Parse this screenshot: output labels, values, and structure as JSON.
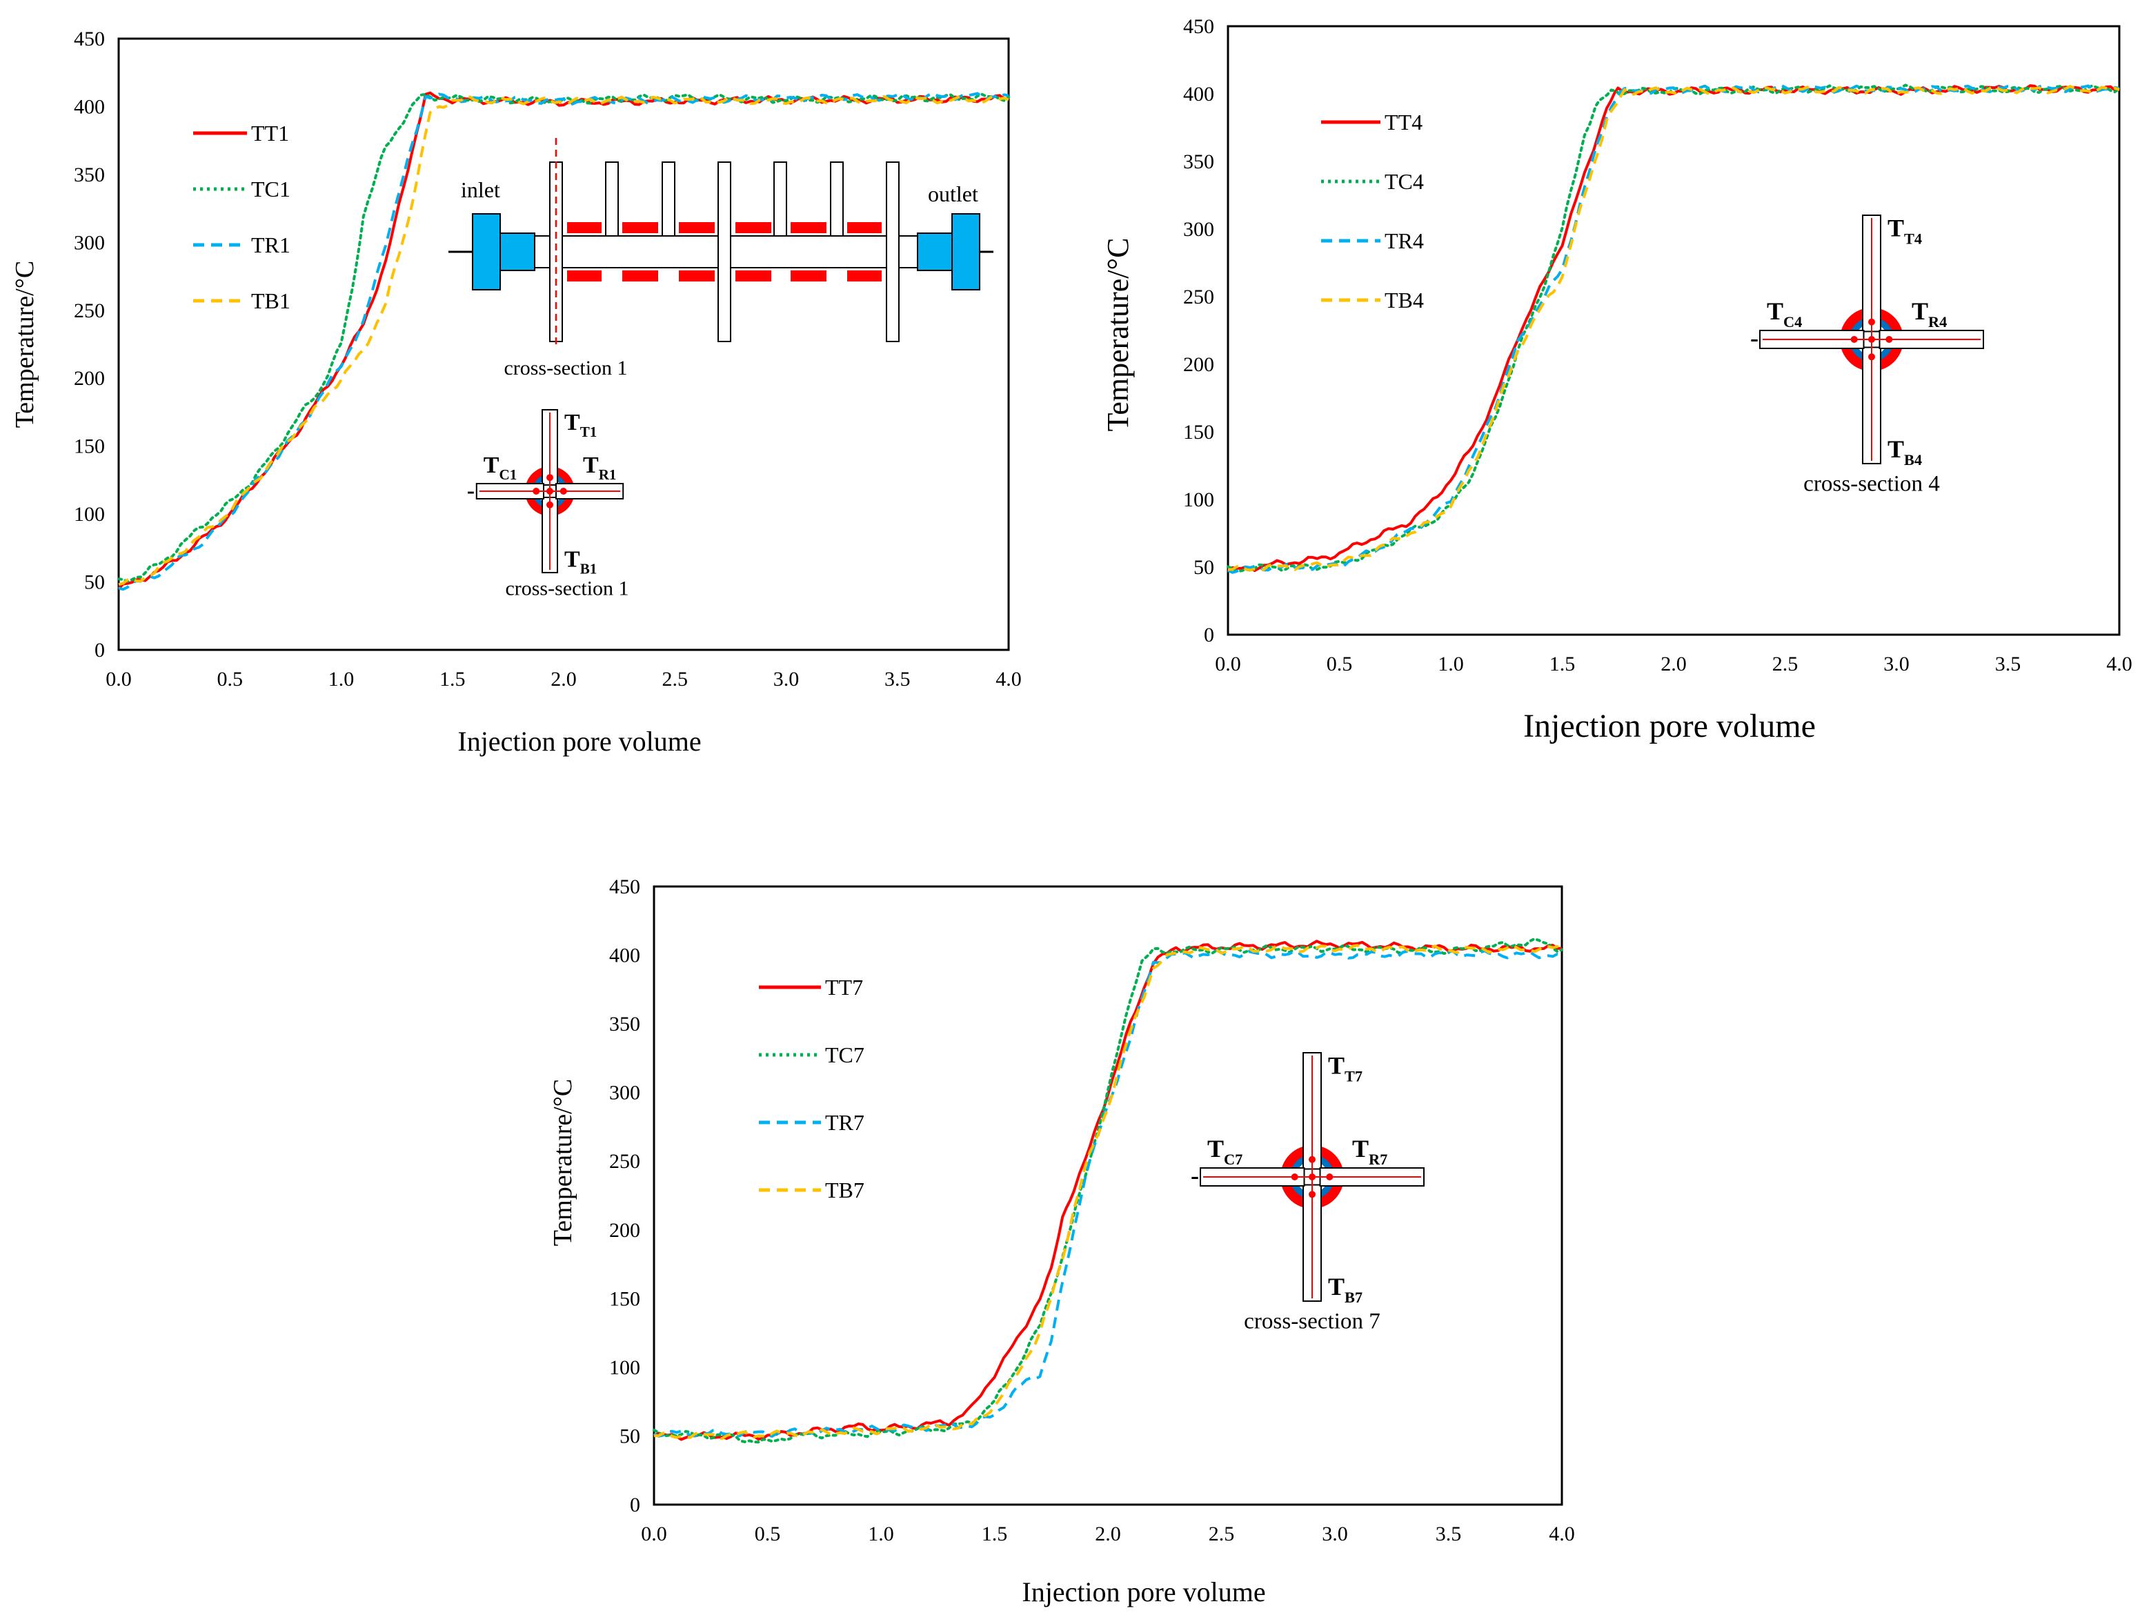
{
  "chart_data": [
    {
      "type": "line",
      "id": "cs1",
      "xlabel": "Injection pore volume",
      "ylabel": "Temperature/°C",
      "xlim": [
        0,
        4
      ],
      "ylim": [
        0,
        450
      ],
      "xticks": [
        "0.0",
        "0.5",
        "1.0",
        "1.5",
        "2.0",
        "2.5",
        "3.0",
        "3.5",
        "4.0"
      ],
      "yticks": [
        "0",
        "50",
        "100",
        "150",
        "200",
        "250",
        "300",
        "350",
        "400",
        "450"
      ],
      "legend_position": "top-left",
      "series": [
        {
          "name": "TT1",
          "color": "#ff0000",
          "dash": "solid",
          "x": [
            0,
            0.1,
            0.2,
            0.3,
            0.4,
            0.5,
            0.6,
            0.7,
            0.8,
            0.9,
            1.0,
            1.1,
            1.2,
            1.3,
            1.38,
            1.5,
            2.0,
            2.5,
            3.0,
            3.5,
            4.0
          ],
          "y": [
            45,
            52,
            60,
            72,
            85,
            100,
            120,
            140,
            160,
            185,
            210,
            240,
            285,
            355,
            408,
            405,
            403,
            404,
            405,
            405,
            406
          ]
        },
        {
          "name": "TC1",
          "color": "#00b050",
          "dash": "dotted",
          "x": [
            0,
            0.1,
            0.2,
            0.3,
            0.4,
            0.5,
            0.6,
            0.7,
            0.8,
            0.9,
            1.0,
            1.05,
            1.1,
            1.2,
            1.3,
            1.36,
            1.5,
            2.0,
            2.5,
            3.0,
            3.5,
            4.0
          ],
          "y": [
            50,
            55,
            65,
            80,
            95,
            108,
            125,
            145,
            170,
            190,
            225,
            265,
            320,
            370,
            395,
            408,
            406,
            404,
            407,
            405,
            406,
            407
          ]
        },
        {
          "name": "TR1",
          "color": "#00b0f0",
          "dash": "dashed",
          "x": [
            0,
            0.1,
            0.2,
            0.3,
            0.4,
            0.5,
            0.6,
            0.7,
            0.8,
            0.9,
            1.0,
            1.1,
            1.2,
            1.3,
            1.38,
            1.5,
            2.0,
            2.5,
            3.0,
            3.5,
            4.0
          ],
          "y": [
            46,
            50,
            58,
            70,
            82,
            100,
            120,
            140,
            160,
            185,
            210,
            240,
            300,
            360,
            408,
            406,
            404,
            405,
            406,
            407,
            408
          ]
        },
        {
          "name": "TB1",
          "color": "#ffc000",
          "dash": "dashed",
          "x": [
            0,
            0.1,
            0.2,
            0.3,
            0.4,
            0.5,
            0.6,
            0.7,
            0.8,
            0.9,
            1.0,
            1.1,
            1.2,
            1.3,
            1.4,
            1.5,
            2.0,
            2.5,
            3.0,
            3.5,
            4.0
          ],
          "y": [
            48,
            52,
            62,
            75,
            88,
            102,
            122,
            140,
            162,
            180,
            200,
            220,
            255,
            315,
            395,
            405,
            404,
            405,
            404,
            405,
            405
          ]
        }
      ],
      "inset": {
        "inlet": "inlet",
        "outlet": "outlet",
        "section_label": "cross-section 1",
        "top": "T",
        "top_sub": "T1",
        "left": "T",
        "left_sub": "C1",
        "right": "T",
        "right_sub": "R1",
        "bottom": "T",
        "bottom_sub": "B1",
        "minus": "-",
        "caption": "cross-section 1"
      }
    },
    {
      "type": "line",
      "id": "cs4",
      "xlabel": "Injection pore volume",
      "ylabel": "Temperature/°C",
      "xlim": [
        0,
        4
      ],
      "ylim": [
        0,
        450
      ],
      "xticks": [
        "0.0",
        "0.5",
        "1.0",
        "1.5",
        "2.0",
        "2.5",
        "3.0",
        "3.5",
        "4.0"
      ],
      "yticks": [
        "0",
        "50",
        "100",
        "150",
        "200",
        "250",
        "300",
        "350",
        "400",
        "450"
      ],
      "legend_position": "top-left",
      "series": [
        {
          "name": "TT4",
          "color": "#ff0000",
          "dash": "solid",
          "x": [
            0,
            0.2,
            0.4,
            0.5,
            0.6,
            0.7,
            0.8,
            0.9,
            1.0,
            1.1,
            1.2,
            1.3,
            1.4,
            1.5,
            1.6,
            1.7,
            1.75,
            2.0,
            2.5,
            3.0,
            3.5,
            4.0
          ],
          "y": [
            47,
            52,
            56,
            60,
            68,
            75,
            82,
            95,
            115,
            140,
            175,
            220,
            255,
            290,
            340,
            390,
            402,
            402,
            403,
            402,
            404,
            403
          ]
        },
        {
          "name": "TC4",
          "color": "#00b050",
          "dash": "dotted",
          "x": [
            0,
            0.2,
            0.4,
            0.5,
            0.6,
            0.7,
            0.8,
            0.9,
            1.0,
            1.1,
            1.2,
            1.3,
            1.4,
            1.5,
            1.6,
            1.65,
            1.72,
            2.0,
            2.5,
            3.0,
            3.5,
            4.0
          ],
          "y": [
            48,
            50,
            50,
            52,
            58,
            65,
            75,
            82,
            95,
            120,
            160,
            210,
            250,
            300,
            370,
            390,
            402,
            402,
            403,
            404,
            403,
            404
          ]
        },
        {
          "name": "TR4",
          "color": "#00b0f0",
          "dash": "dashed",
          "x": [
            0,
            0.2,
            0.4,
            0.5,
            0.6,
            0.7,
            0.8,
            0.9,
            1.0,
            1.1,
            1.2,
            1.3,
            1.4,
            1.5,
            1.6,
            1.7,
            1.76,
            2.0,
            2.5,
            3.0,
            3.5,
            4.0
          ],
          "y": [
            48,
            50,
            50,
            52,
            58,
            66,
            76,
            84,
            100,
            130,
            170,
            215,
            245,
            270,
            330,
            385,
            402,
            403,
            404,
            403,
            404,
            404
          ]
        },
        {
          "name": "TB4",
          "color": "#ffc000",
          "dash": "dashed",
          "x": [
            0,
            0.2,
            0.4,
            0.5,
            0.6,
            0.7,
            0.8,
            0.9,
            1.0,
            1.1,
            1.2,
            1.3,
            1.4,
            1.5,
            1.6,
            1.7,
            1.78,
            2.0,
            2.5,
            3.0,
            3.5,
            4.0
          ],
          "y": [
            48,
            50,
            51,
            53,
            58,
            66,
            74,
            82,
            96,
            125,
            165,
            210,
            240,
            265,
            325,
            380,
            402,
            402,
            403,
            402,
            403,
            403
          ]
        }
      ],
      "inset": {
        "section_label": "cross-section 4",
        "top": "T",
        "top_sub": "T4",
        "left": "T",
        "left_sub": "C4",
        "right": "T",
        "right_sub": "R4",
        "bottom": "T",
        "bottom_sub": "B4",
        "minus": "-"
      }
    },
    {
      "type": "line",
      "id": "cs7",
      "xlabel": "Injection pore volume",
      "ylabel": "Temperature/°C",
      "xlim": [
        0,
        4
      ],
      "ylim": [
        0,
        450
      ],
      "xticks": [
        "0.0",
        "0.5",
        "1.0",
        "1.5",
        "2.0",
        "2.5",
        "3.0",
        "3.5",
        "4.0"
      ],
      "yticks": [
        "0",
        "50",
        "100",
        "150",
        "200",
        "250",
        "300",
        "350",
        "400",
        "450"
      ],
      "legend_position": "top-left",
      "series": [
        {
          "name": "TT7",
          "color": "#ff0000",
          "dash": "solid",
          "x": [
            0,
            0.5,
            0.9,
            1.0,
            1.3,
            1.4,
            1.5,
            1.6,
            1.7,
            1.75,
            1.8,
            1.85,
            1.9,
            2.0,
            2.1,
            2.2,
            2.3,
            2.5,
            3.0,
            3.5,
            4.0
          ],
          "y": [
            50,
            50,
            57,
            55,
            60,
            70,
            95,
            120,
            150,
            170,
            210,
            230,
            250,
            300,
            350,
            395,
            405,
            406,
            408,
            405,
            405
          ]
        },
        {
          "name": "TC7",
          "color": "#00b050",
          "dash": "dotted",
          "x": [
            0,
            0.3,
            0.5,
            0.6,
            1.0,
            1.3,
            1.4,
            1.5,
            1.6,
            1.7,
            1.8,
            1.9,
            2.0,
            2.1,
            2.15,
            2.2,
            2.5,
            3.0,
            3.5,
            3.9,
            4.0
          ],
          "y": [
            52,
            50,
            45,
            50,
            52,
            56,
            60,
            75,
            100,
            130,
            180,
            240,
            300,
            370,
            395,
            403,
            404,
            405,
            403,
            410,
            404
          ]
        },
        {
          "name": "TR7",
          "color": "#00b0f0",
          "dash": "dashed",
          "x": [
            0,
            0.5,
            1.0,
            1.4,
            1.5,
            1.6,
            1.7,
            1.75,
            1.8,
            1.85,
            1.9,
            2.0,
            2.1,
            2.2,
            2.3,
            2.5,
            3.0,
            3.5,
            4.0
          ],
          "y": [
            52,
            52,
            55,
            58,
            65,
            85,
            95,
            120,
            160,
            200,
            240,
            290,
            340,
            395,
            400,
            401,
            400,
            401,
            400
          ]
        },
        {
          "name": "TB7",
          "color": "#ffc000",
          "dash": "dashed",
          "x": [
            0,
            0.5,
            1.0,
            1.4,
            1.5,
            1.6,
            1.7,
            1.75,
            1.8,
            1.85,
            1.9,
            2.0,
            2.1,
            2.2,
            2.3,
            2.5,
            3.0,
            3.5,
            4.0
          ],
          "y": [
            50,
            51,
            54,
            58,
            72,
            95,
            125,
            150,
            180,
            215,
            245,
            290,
            345,
            390,
            403,
            404,
            405,
            404,
            405
          ]
        }
      ],
      "inset": {
        "section_label": "cross-section 7",
        "top": "T",
        "top_sub": "T7",
        "left": "T",
        "left_sub": "C7",
        "right": "T",
        "right_sub": "R7",
        "bottom": "T",
        "bottom_sub": "B7",
        "minus": "-"
      }
    }
  ]
}
